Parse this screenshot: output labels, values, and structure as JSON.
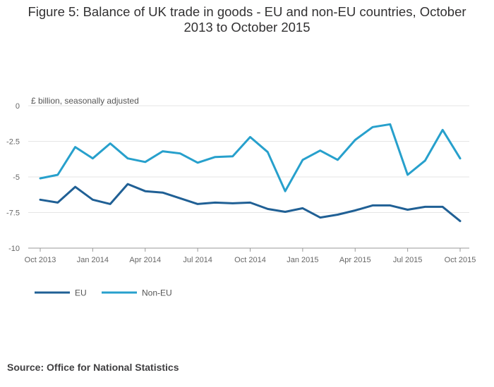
{
  "title_line1": "Figure 5: Balance of UK trade in goods - EU and non-EU countries, October",
  "title_line2": "2013 to October 2015",
  "source": "Source: Office for National Statistics",
  "chart_data": {
    "type": "line",
    "title": "Figure 5: Balance of UK trade in goods - EU and non-EU countries, October 2013 to October 2015",
    "ylabel": "£ billion, seasonally adjusted",
    "xlabel": "",
    "ylim": [
      -10,
      0
    ],
    "yticks": [
      0,
      -2.5,
      -5,
      -7.5,
      -10
    ],
    "ytick_labels": [
      "0",
      "-2.5",
      "-5",
      "-7.5",
      "-10"
    ],
    "grid": true,
    "legend_position": "bottom-left",
    "x_tick_labels": [
      "Oct 2013",
      "Jan 2014",
      "Apr 2014",
      "Jul 2014",
      "Oct 2014",
      "Jan 2015",
      "Apr 2015",
      "Jul 2015",
      "Oct 2015"
    ],
    "x_tick_indices": [
      0,
      3,
      6,
      9,
      12,
      15,
      18,
      21,
      24
    ],
    "x": [
      "2013-10",
      "2013-11",
      "2013-12",
      "2014-01",
      "2014-02",
      "2014-03",
      "2014-04",
      "2014-05",
      "2014-06",
      "2014-07",
      "2014-08",
      "2014-09",
      "2014-10",
      "2014-11",
      "2014-12",
      "2015-01",
      "2015-02",
      "2015-03",
      "2015-04",
      "2015-05",
      "2015-06",
      "2015-07",
      "2015-08",
      "2015-09",
      "2015-10"
    ],
    "series": [
      {
        "name": "EU",
        "color": "#206095",
        "values": [
          -6.6,
          -6.8,
          -5.7,
          -6.6,
          -6.9,
          -5.5,
          -6.0,
          -6.1,
          -6.5,
          -6.9,
          -6.8,
          -6.85,
          -6.8,
          -7.25,
          -7.45,
          -7.2,
          -7.85,
          -7.65,
          -7.35,
          -7.0,
          -7.0,
          -7.3,
          -7.1,
          -7.1,
          -8.1
        ]
      },
      {
        "name": "Non-EU",
        "color": "#27a0cc",
        "values": [
          -5.1,
          -4.85,
          -2.9,
          -3.7,
          -2.65,
          -3.7,
          -3.95,
          -3.2,
          -3.35,
          -4.0,
          -3.6,
          -3.55,
          -2.2,
          -3.25,
          -6.0,
          -3.8,
          -3.15,
          -3.8,
          -2.4,
          -1.5,
          -1.3,
          -4.85,
          -3.85,
          -1.7,
          -3.7
        ]
      }
    ]
  }
}
